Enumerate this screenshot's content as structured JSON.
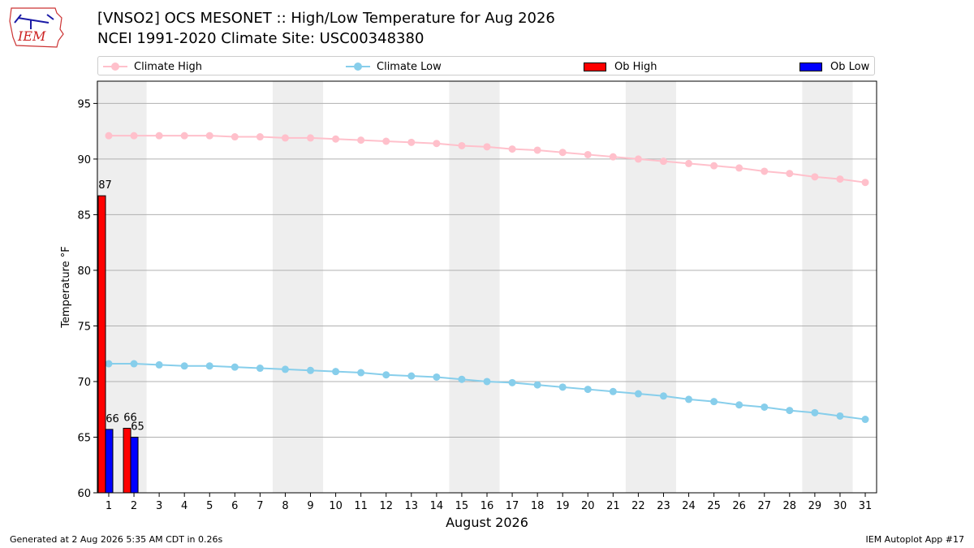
{
  "title_line1": "[VNSO2] OCS MESONET :: High/Low Temperature for Aug 2026",
  "title_line2": "NCEI 1991-2020 Climate Site: USC00348380",
  "logo_text": "IEM",
  "footer_left": "Generated at 2 Aug 2026 5:35 AM CDT in 0.26s",
  "footer_right": "IEM Autoplot App #17",
  "colors": {
    "climate_high": "#ffc0cb",
    "climate_low": "#87ceeb",
    "ob_high": "#ff0000",
    "ob_low": "#0000ff",
    "weekend_shade": "#eeeeee",
    "grid": "#b0b0b0"
  },
  "chart_data": {
    "type": "bar",
    "xlabel": "August 2026",
    "ylabel": "Temperature °F",
    "ylim": [
      60,
      97
    ],
    "yticks": [
      60,
      65,
      70,
      75,
      80,
      85,
      90,
      95
    ],
    "x": [
      1,
      2,
      3,
      4,
      5,
      6,
      7,
      8,
      9,
      10,
      11,
      12,
      13,
      14,
      15,
      16,
      17,
      18,
      19,
      20,
      21,
      22,
      23,
      24,
      25,
      26,
      27,
      28,
      29,
      30,
      31
    ],
    "weekend_days": [
      1,
      2,
      8,
      9,
      15,
      16,
      22,
      23,
      29,
      30
    ],
    "grid": true,
    "legend_position": "top",
    "series": [
      {
        "name": "Climate High",
        "kind": "line",
        "values": [
          92.1,
          92.1,
          92.1,
          92.1,
          92.1,
          92.0,
          92.0,
          91.9,
          91.9,
          91.8,
          91.7,
          91.6,
          91.5,
          91.4,
          91.2,
          91.1,
          90.9,
          90.8,
          90.6,
          90.4,
          90.2,
          90.0,
          89.8,
          89.6,
          89.4,
          89.2,
          88.9,
          88.7,
          88.4,
          88.2,
          87.9
        ]
      },
      {
        "name": "Climate Low",
        "kind": "line",
        "values": [
          71.6,
          71.6,
          71.5,
          71.4,
          71.4,
          71.3,
          71.2,
          71.1,
          71.0,
          70.9,
          70.8,
          70.6,
          70.5,
          70.4,
          70.2,
          70.0,
          69.9,
          69.7,
          69.5,
          69.3,
          69.1,
          68.9,
          68.7,
          68.4,
          68.2,
          67.9,
          67.7,
          67.4,
          67.2,
          66.9,
          66.6
        ]
      },
      {
        "name": "Ob High",
        "kind": "bar",
        "x": [
          1,
          2
        ],
        "values": [
          86.7,
          65.8
        ],
        "labels": [
          "87",
          "66"
        ]
      },
      {
        "name": "Ob Low",
        "kind": "bar",
        "x": [
          1,
          2
        ],
        "values": [
          65.7,
          65.0
        ],
        "labels": [
          "66",
          "65"
        ]
      }
    ]
  }
}
